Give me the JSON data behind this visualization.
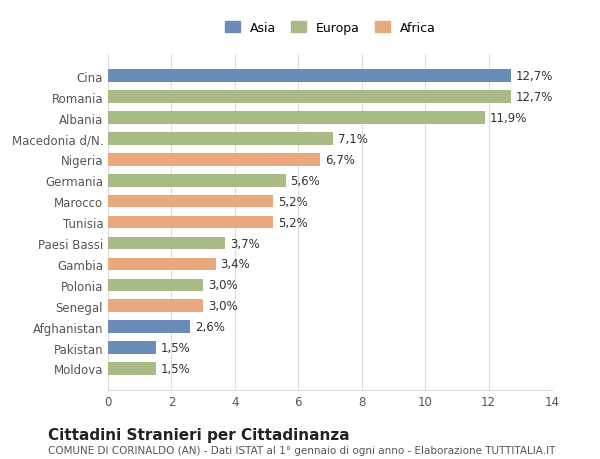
{
  "categories": [
    "Cina",
    "Romania",
    "Albania",
    "Macedonia d/N.",
    "Nigeria",
    "Germania",
    "Marocco",
    "Tunisia",
    "Paesi Bassi",
    "Gambia",
    "Polonia",
    "Senegal",
    "Afghanistan",
    "Pakistan",
    "Moldova"
  ],
  "values": [
    12.7,
    12.7,
    11.9,
    7.1,
    6.7,
    5.6,
    5.2,
    5.2,
    3.7,
    3.4,
    3.0,
    3.0,
    2.6,
    1.5,
    1.5
  ],
  "labels": [
    "12,7%",
    "12,7%",
    "11,9%",
    "7,1%",
    "6,7%",
    "5,6%",
    "5,2%",
    "5,2%",
    "3,7%",
    "3,4%",
    "3,0%",
    "3,0%",
    "2,6%",
    "1,5%",
    "1,5%"
  ],
  "continents": [
    "Asia",
    "Europa",
    "Europa",
    "Europa",
    "Africa",
    "Europa",
    "Africa",
    "Africa",
    "Europa",
    "Africa",
    "Europa",
    "Africa",
    "Asia",
    "Asia",
    "Europa"
  ],
  "colors": {
    "Asia": "#6b8cba",
    "Europa": "#a8bb87",
    "Africa": "#e8a97e"
  },
  "legend_order": [
    "Asia",
    "Europa",
    "Africa"
  ],
  "title": "Cittadini Stranieri per Cittadinanza",
  "subtitle": "COMUNE DI CORINALDO (AN) - Dati ISTAT al 1° gennaio di ogni anno - Elaborazione TUTTITALIA.IT",
  "xlabel": "",
  "xlim": [
    0,
    14
  ],
  "xticks": [
    0,
    2,
    4,
    6,
    8,
    10,
    12,
    14
  ],
  "background_color": "#ffffff",
  "grid_color": "#dddddd",
  "bar_height": 0.6,
  "label_fontsize": 8.5,
  "tick_fontsize": 8.5,
  "title_fontsize": 11,
  "subtitle_fontsize": 7.5
}
